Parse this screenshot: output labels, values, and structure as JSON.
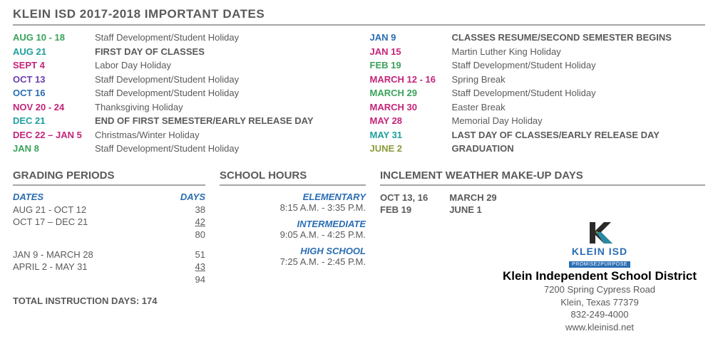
{
  "title": "KLEIN ISD 2017-2018 IMPORTANT DATES",
  "colors": {
    "teal": "#1f9e9e",
    "blue": "#2a6db3",
    "magenta": "#c4247a",
    "purple": "#6a3fb0",
    "green": "#3aa35a",
    "gray": "#5a5a5a"
  },
  "dates_left": [
    {
      "label": "AUG 10 - 18",
      "color": "#3aa35a",
      "desc": "Staff Development/Student Holiday",
      "bold": false
    },
    {
      "label": "AUG 21",
      "color": "#1f9e9e",
      "desc": "FIRST DAY OF CLASSES",
      "bold": true
    },
    {
      "label": "SEPT 4",
      "color": "#c4247a",
      "desc": "Labor Day Holiday",
      "bold": false
    },
    {
      "label": "OCT 13",
      "color": "#6a3fb0",
      "desc": "Staff Development/Student Holiday",
      "bold": false
    },
    {
      "label": "OCT 16",
      "color": "#2a6db3",
      "desc": "Staff Development/Student Holiday",
      "bold": false
    },
    {
      "label": "NOV 20 - 24",
      "color": "#c4247a",
      "desc": "Thanksgiving Holiday",
      "bold": false
    },
    {
      "label": "DEC 21",
      "color": "#1f9e9e",
      "desc": "END OF FIRST SEMESTER/EARLY RELEASE DAY",
      "bold": true
    },
    {
      "label": "DEC 22 – JAN 5",
      "color": "#c4247a",
      "desc": "Christmas/Winter Holiday",
      "bold": false
    },
    {
      "label": "JAN 8",
      "color": "#3aa35a",
      "desc": "Staff Development/Student Holiday",
      "bold": false
    }
  ],
  "dates_right": [
    {
      "label": "JAN 9",
      "color": "#2a6db3",
      "desc": "CLASSES RESUME/SECOND SEMESTER BEGINS",
      "bold": true
    },
    {
      "label": "JAN 15",
      "color": "#c4247a",
      "desc": "Martin Luther King Holiday",
      "bold": false
    },
    {
      "label": "FEB 19",
      "color": "#3aa35a",
      "desc": "Staff Development/Student Holiday",
      "bold": false
    },
    {
      "label": "MARCH 12 - 16",
      "color": "#c4247a",
      "desc": "Spring Break",
      "bold": false
    },
    {
      "label": "MARCH 29",
      "color": "#3aa35a",
      "desc": "Staff Development/Student Holiday",
      "bold": false
    },
    {
      "label": "MARCH 30",
      "color": "#c4247a",
      "desc": "Easter Break",
      "bold": false
    },
    {
      "label": "MAY 28",
      "color": "#c4247a",
      "desc": "Memorial Day Holiday",
      "bold": false
    },
    {
      "label": "MAY 31",
      "color": "#1f9e9e",
      "desc": "LAST DAY OF CLASSES/EARLY RELEASE DAY",
      "bold": true
    },
    {
      "label": "JUNE 2",
      "color": "#8a9a3a",
      "desc": "GRADUATION",
      "bold": true
    }
  ],
  "grading": {
    "title": "GRADING PERIODS",
    "header_dates": "DATES",
    "header_days": "DAYS",
    "rows1": [
      {
        "dates": "AUG 21 - OCT  12",
        "days": "38",
        "underline": false
      },
      {
        "dates": "OCT 17 – DEC 21",
        "days": "42",
        "underline": true
      },
      {
        "dates": "",
        "days": "80",
        "underline": false
      }
    ],
    "rows2": [
      {
        "dates": "JAN 9 - MARCH 28",
        "days": "51",
        "underline": false
      },
      {
        "dates": "APRIL 2 - MAY 31",
        "days": "43",
        "underline": true
      },
      {
        "dates": "",
        "days": "94",
        "underline": false
      }
    ],
    "total_label": "TOTAL INSTRUCTION DAYS: 174"
  },
  "hours": {
    "title": "SCHOOL HOURS",
    "levels": [
      {
        "name": "ELEMENTARY",
        "time": "8:15 A.M. - 3:35 P.M."
      },
      {
        "name": "INTERMEDIATE",
        "time": "9:05 A.M. - 4:25 P.M."
      },
      {
        "name": "HIGH SCHOOL",
        "time": "7:25 A.M. - 2:45 P.M."
      }
    ]
  },
  "weather": {
    "title": "INCLEMENT WEATHER MAKE-UP DAYS",
    "col1": [
      "OCT 13, 16",
      "FEB 19"
    ],
    "col2": [
      "MARCH 29",
      "JUNE 1"
    ]
  },
  "district": {
    "logo_text": "KLEIN ISD",
    "logo_tag": "PROMISE2PURPOSE",
    "name": "Klein Independent School District",
    "addr1": "7200 Spring Cypress Road",
    "addr2": "Klein, Texas 77379",
    "phone": "832-249-4000",
    "web": "www.kleinisd.net"
  }
}
